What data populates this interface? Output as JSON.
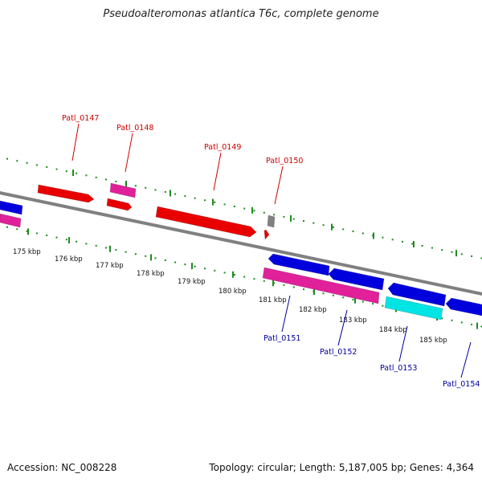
{
  "header": {
    "title": "Pseudoalteromonas atlantica T6c, complete genome"
  },
  "footer": {
    "accession": "Accession: NC_008228",
    "summary": "Topology: circular; Length: 5,187,005 bp; Genes: 4,364"
  },
  "colors": {
    "forward_gene": "#e80000",
    "forward_label": "#cc0000",
    "forward_pseudo": "#e0219a",
    "reverse_gene": "#0000dd",
    "reverse_label": "#00009a",
    "reverse_pseudo": "#e0219a",
    "cyan_gene": "#00e4e4",
    "gray_feature": "#808080",
    "backbone": "#808080",
    "tick_dots": "#1f8a1f"
  },
  "ticks": [
    {
      "label": "175 kbp"
    },
    {
      "label": "176 kbp"
    },
    {
      "label": "177 kbp"
    },
    {
      "label": "178 kbp"
    },
    {
      "label": "179 kbp"
    },
    {
      "label": "180 kbp"
    },
    {
      "label": "181 kbp"
    },
    {
      "label": "182 kbp"
    },
    {
      "label": "183 kbp"
    },
    {
      "label": "184 kbp"
    },
    {
      "label": "185 kbp"
    }
  ],
  "gene_labels": [
    {
      "id": "Patl_0147",
      "strand": "forward"
    },
    {
      "id": "Patl_0148",
      "strand": "forward"
    },
    {
      "id": "Patl_0149",
      "strand": "forward"
    },
    {
      "id": "Patl_0150",
      "strand": "forward"
    },
    {
      "id": "Patl_0151",
      "strand": "reverse"
    },
    {
      "id": "Patl_0152",
      "strand": "reverse"
    },
    {
      "id": "Patl_0153",
      "strand": "reverse"
    },
    {
      "id": "Patl_0154",
      "strand": "reverse"
    }
  ]
}
